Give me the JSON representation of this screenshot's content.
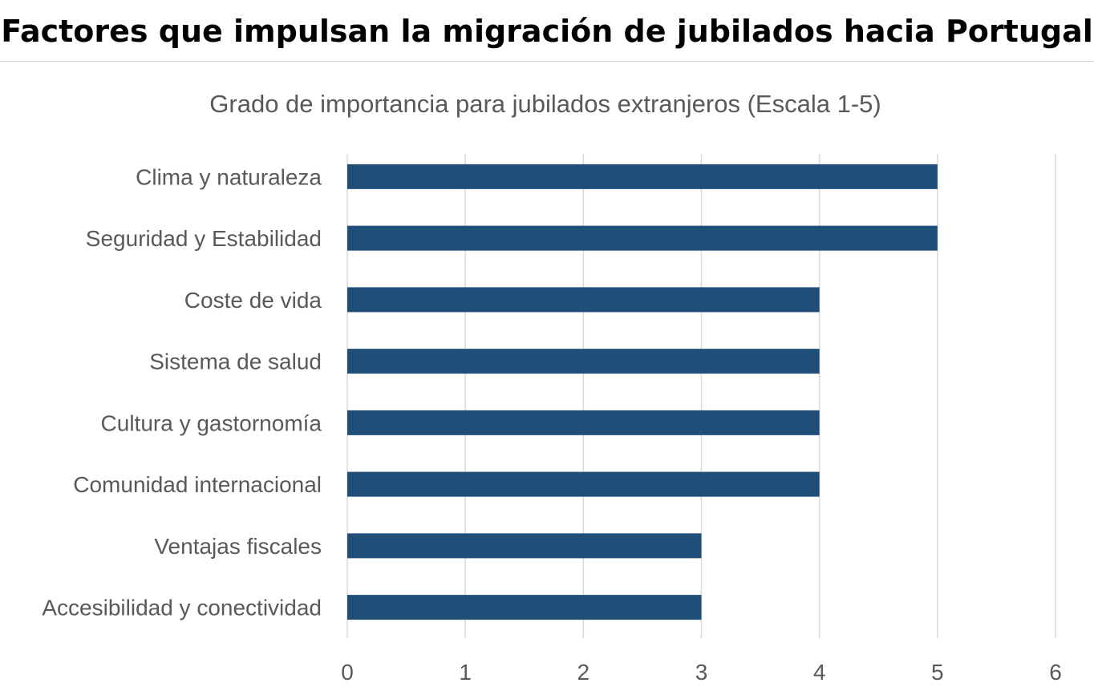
{
  "page_title": "Factores que impulsan la migración de jubilados hacia Portugal",
  "colors": {
    "bar": "#1f4e79",
    "grid": "#d9d9d9",
    "text": "#595959"
  },
  "chart_data": {
    "type": "bar",
    "orientation": "horizontal",
    "title": "Grado de importancia para jubilados extranjeros (Escala 1-5)",
    "categories": [
      "Clima y naturaleza",
      "Seguridad y Estabilidad",
      "Coste de vida",
      "Sistema de salud",
      "Cultura y gastornomía",
      "Comunidad internacional",
      "Ventajas fiscales",
      "Accesibilidad y conectividad"
    ],
    "values": [
      5,
      5,
      4,
      4,
      4,
      4,
      3,
      3
    ],
    "xlim": [
      0,
      6
    ],
    "xticks": [
      "0",
      "1",
      "2",
      "3",
      "4",
      "5",
      "6"
    ],
    "xlabel": "",
    "ylabel": "",
    "grid": "vertical",
    "legend": "none"
  }
}
